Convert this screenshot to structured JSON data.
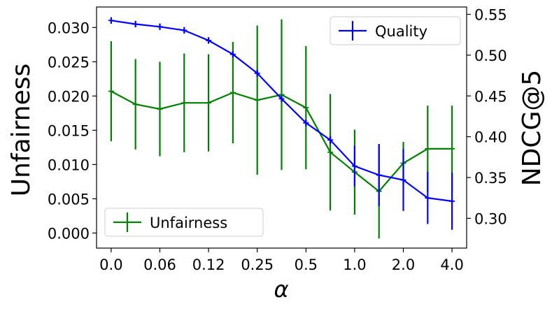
{
  "chart_data": {
    "type": "line",
    "xlabel": "α",
    "ylabel_left": "Unfairness",
    "ylabel_right": "NDCG@5",
    "x_tick_labels": [
      "0.0",
      "0.06",
      "0.12",
      "0.25",
      "0.5",
      "1.0",
      "2.0",
      "4.0"
    ],
    "x_tick_indices": [
      0,
      2,
      4,
      6,
      8,
      10,
      12,
      14
    ],
    "x_index_range": [
      -0.6,
      14.6
    ],
    "y_left_ticks": [
      "0.000",
      "0.005",
      "0.010",
      "0.015",
      "0.020",
      "0.025",
      "0.030"
    ],
    "y_left_range": [
      -0.0022,
      0.033
    ],
    "y_right_ticks": [
      "0.30",
      "0.35",
      "0.40",
      "0.45",
      "0.50",
      "0.55"
    ],
    "y_right_range": [
      0.2635,
      0.559
    ],
    "series": [
      {
        "name": "Quality",
        "axis": "right",
        "color": "#0000ff",
        "legend_position": "upper right",
        "x_index": [
          0,
          1,
          2,
          3,
          4,
          5,
          6,
          7,
          8,
          9,
          10,
          11,
          12,
          13,
          14
        ],
        "values": [
          0.5425,
          0.538,
          0.5348,
          0.5304,
          0.518,
          0.501,
          0.4778,
          0.4465,
          0.417,
          0.396,
          0.364,
          0.353,
          0.347,
          0.325,
          0.321
        ],
        "error": [
          0.004,
          0.004,
          0.004,
          0.004,
          0.004,
          0.004,
          0.004,
          0.004,
          0.004,
          0.005,
          0.025,
          0.038,
          0.038,
          0.032,
          0.035
        ]
      },
      {
        "name": "Unfairness",
        "axis": "left",
        "color": "#008000",
        "legend_position": "lower left",
        "x_index": [
          0,
          1,
          2,
          3,
          4,
          5,
          6,
          7,
          8,
          9,
          10,
          11,
          12,
          13,
          14
        ],
        "values": [
          0.0207,
          0.0188,
          0.0181,
          0.019,
          0.019,
          0.0205,
          0.0194,
          0.0202,
          0.0183,
          0.0118,
          0.0089,
          0.0061,
          0.0102,
          0.0123,
          0.0123
        ],
        "error": [
          0.0073,
          0.0066,
          0.0069,
          0.0072,
          0.0071,
          0.0074,
          0.0109,
          0.011,
          0.009,
          0.0085,
          0.0062,
          0.0069,
          0.0031,
          0.0063,
          0.0063
        ]
      }
    ],
    "grid": false
  }
}
